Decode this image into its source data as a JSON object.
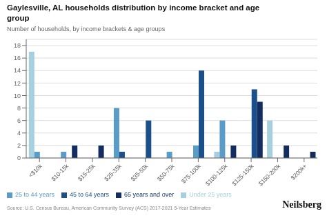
{
  "chart_data": {
    "type": "bar",
    "title": "Gaylesville, AL households distribution by income bracket and age\ngroup",
    "subtitle": "Number of households, by income brackets & age groups",
    "annotations": [
      "Source: U.S. Census Bureau, American Community Survey (ACS) 2017-2021 5-Year Estimates",
      "Neilsberg"
    ],
    "categories": [
      "<$10k",
      "$10-15k",
      "$15-25k",
      "$25-35k",
      "$35-50k",
      "$50-75k",
      "$75-100k",
      "$100-125k",
      "$125-150k",
      "$150-200k",
      "$200k+"
    ],
    "series": [
      {
        "name": "Under 25 years",
        "color": "#a8cfe0",
        "values": [
          17,
          0,
          0,
          0,
          0,
          0,
          0,
          1,
          0,
          6,
          0
        ]
      },
      {
        "name": "25 to 44 years",
        "color": "#5b9bc8",
        "values": [
          1,
          1,
          0,
          8,
          0,
          1,
          2,
          6,
          0,
          0,
          0
        ]
      },
      {
        "name": "45 to 64 years",
        "color": "#1b4f8a",
        "values": [
          0,
          0,
          0,
          1,
          6,
          0,
          14,
          0,
          11,
          0,
          0
        ]
      },
      {
        "name": "65 years and over",
        "color": "#122d5e",
        "values": [
          0,
          2,
          2,
          0,
          0,
          0,
          0,
          2,
          9,
          2,
          1
        ]
      }
    ],
    "ylim": [
      0,
      19
    ],
    "yticks": [
      0,
      2,
      4,
      6,
      8,
      10,
      12,
      14,
      16,
      18
    ],
    "grid": true,
    "legend": "bottom"
  }
}
